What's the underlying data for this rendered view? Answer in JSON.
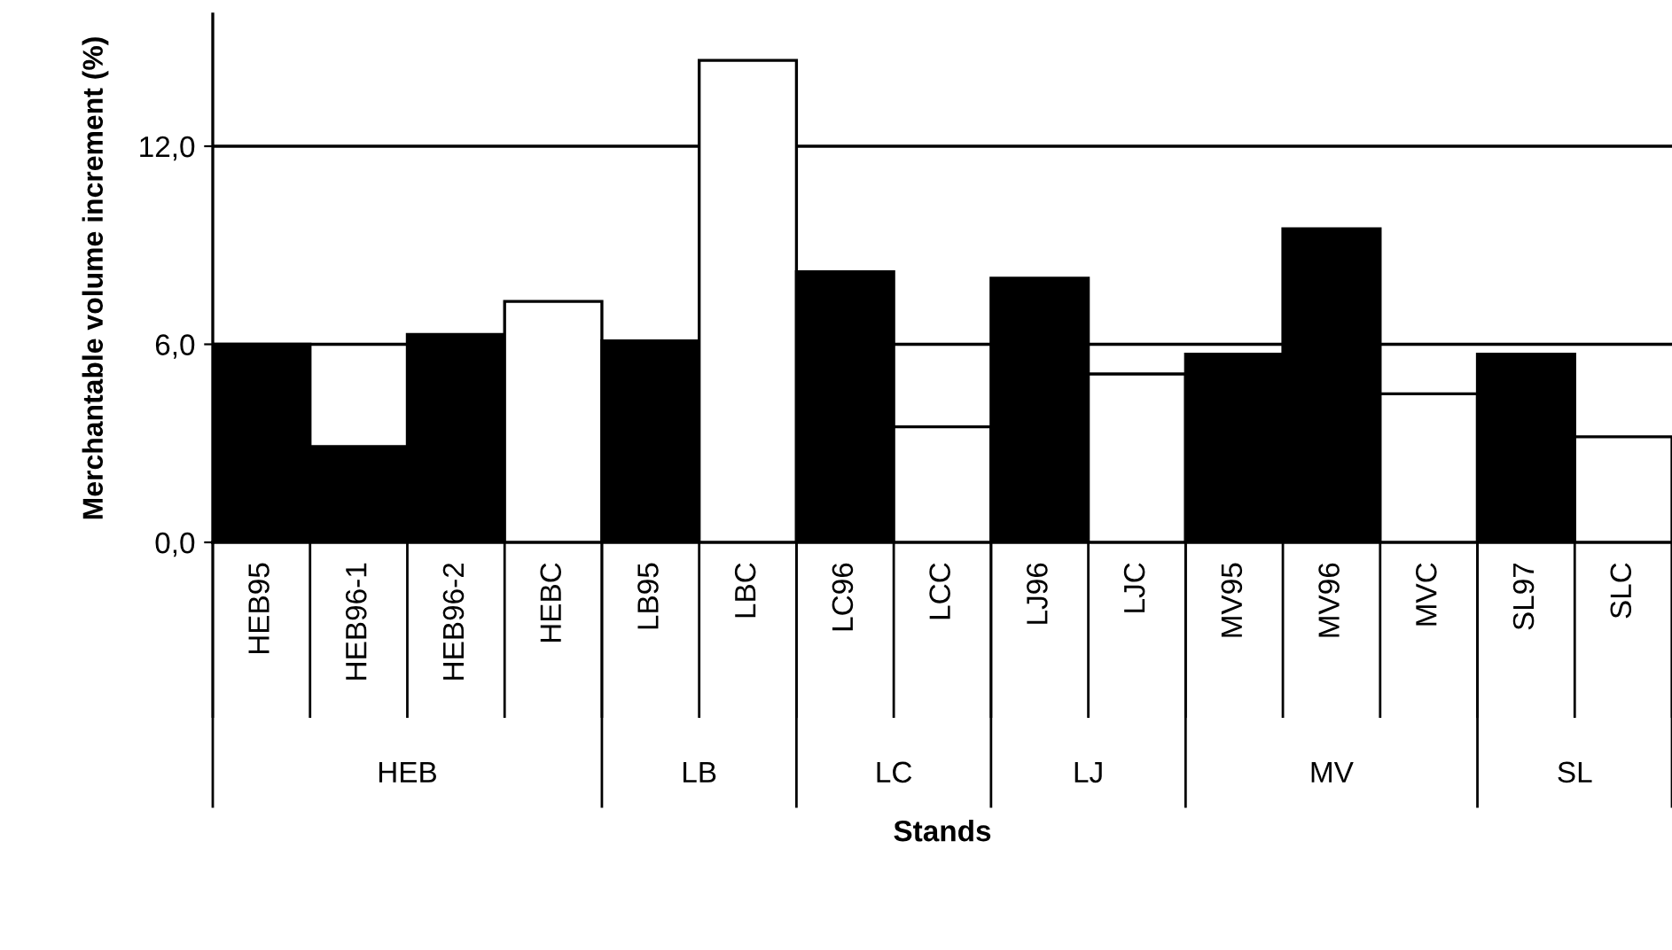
{
  "chart_data": {
    "type": "bar",
    "xlabel": "Stands",
    "ylabel": "Merchantable volume increment (%)",
    "categories": [
      "HEB95",
      "HEB96-1",
      "HEB96-2",
      "HEBC",
      "LB95",
      "LBC",
      "LC96",
      "LCC",
      "LJ96",
      "LJC",
      "MV95",
      "MV96",
      "MVC",
      "SL97",
      "SLC"
    ],
    "values": [
      6.0,
      2.9,
      6.3,
      7.3,
      6.1,
      14.6,
      8.2,
      3.5,
      8.0,
      5.1,
      5.7,
      9.5,
      4.5,
      5.7,
      3.2
    ],
    "colors": [
      "#000000",
      "#000000",
      "#000000",
      "#ffffff",
      "#000000",
      "#ffffff",
      "#000000",
      "#ffffff",
      "#000000",
      "#ffffff",
      "#000000",
      "#000000",
      "#ffffff",
      "#000000",
      "#ffffff"
    ],
    "ylim": [
      0,
      16
    ],
    "yticks": [
      {
        "value": 0,
        "label": "0,0"
      },
      {
        "value": 6,
        "label": "6,0"
      },
      {
        "value": 12,
        "label": "12,0"
      }
    ],
    "grid": "y",
    "annotations": [
      "HEB",
      "LB",
      "LC",
      "LJ",
      "MV",
      "SL"
    ]
  }
}
